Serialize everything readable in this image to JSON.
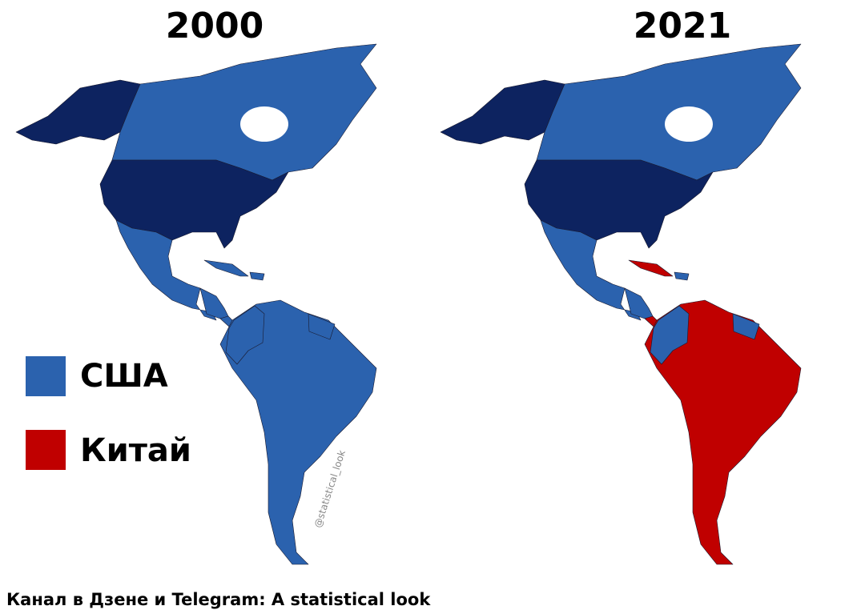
{
  "titles": [
    "2000",
    "2021"
  ],
  "legend": [
    {
      "label": "США",
      "color": "#2b62ae"
    },
    {
      "label": "Китай",
      "color": "#c00000"
    }
  ],
  "watermark": "@statistical_look",
  "footer": "Канал в Дзене и Telegram: A statistical look"
}
